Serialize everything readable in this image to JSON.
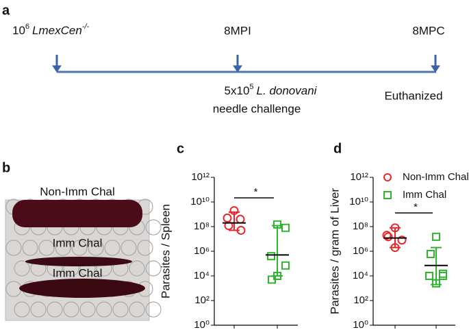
{
  "panels": [
    "a",
    "b"
  ],
  "timeline": {
    "start": {
      "base": "10",
      "exp": "6",
      "strain": "LmexCen",
      "genotype": "-/-"
    },
    "mid": {
      "label": "8MPI",
      "challenge_base": "5x10",
      "challenge_exp": "5",
      "species": "L. donovani",
      "route": "needle challenge"
    },
    "end": {
      "label": "8MPC",
      "note": "Euthanized"
    }
  },
  "photo": {
    "labels": [
      "Non-Imm Chal",
      "Imm Chal",
      "Imm Chal"
    ]
  },
  "chart_data": [
    {
      "type": "scatter",
      "panel": "c",
      "y_label": "Parasites / Spleen",
      "log_y": true,
      "categories": [
        null,
        null
      ],
      "ylim": [
        1,
        1000000000000
      ],
      "yticks": [
        {
          "value": 1,
          "label": "10⁰"
        },
        {
          "value": 100,
          "label": "10²"
        },
        {
          "value": 10000,
          "label": "10⁴"
        },
        {
          "value": 1000000,
          "label": "10⁶"
        },
        {
          "value": 100000000,
          "label": "10⁸"
        },
        {
          "value": 10000000000,
          "label": "10¹⁰"
        },
        {
          "value": 1000000000000,
          "label": "10¹²"
        }
      ],
      "significance": "*",
      "series": [
        {
          "color": "#e8262a",
          "marker": "circle",
          "values": [
            2000000000,
            500000000,
            120000000,
            50000000,
            400000000
          ],
          "center": 200000000,
          "error_low": 50000000,
          "error_high": 1500000000
        },
        {
          "color": "#2db52d",
          "marker": "square",
          "values": [
            150000000,
            80000000,
            400000,
            70000,
            5000,
            10000
          ],
          "center": 500000,
          "error_low": 10000,
          "error_high": 120000000
        }
      ]
    },
    {
      "type": "scatter",
      "panel": "d",
      "y_label": "Parasites / gram of Liver",
      "log_y": true,
      "categories": [
        null,
        null
      ],
      "ylim": [
        1,
        1000000000000
      ],
      "yticks": [
        {
          "value": 1,
          "label": "10⁰"
        },
        {
          "value": 100,
          "label": "10²"
        },
        {
          "value": 10000,
          "label": "10⁴"
        },
        {
          "value": 1000000,
          "label": "10⁶"
        },
        {
          "value": 100000000,
          "label": "10⁸"
        },
        {
          "value": 10000000000,
          "label": "10¹⁰"
        },
        {
          "value": 1000000000000,
          "label": "10¹²"
        }
      ],
      "significance": "*",
      "legend": "top-right",
      "series": [
        {
          "name": "Non-Imm Chal",
          "color": "#e8262a",
          "marker": "circle",
          "values": [
            80000000,
            20000000,
            8000000,
            2000000,
            15000000
          ],
          "center": 12000000,
          "error_low": 2000000,
          "error_high": 80000000
        },
        {
          "name": "Imm Chal",
          "color": "#2db52d",
          "marker": "square",
          "values": [
            15000000,
            600000,
            15000,
            10000,
            10000,
            2500
          ],
          "center": 70000,
          "error_low": 2000,
          "error_high": 2000000
        }
      ]
    }
  ]
}
